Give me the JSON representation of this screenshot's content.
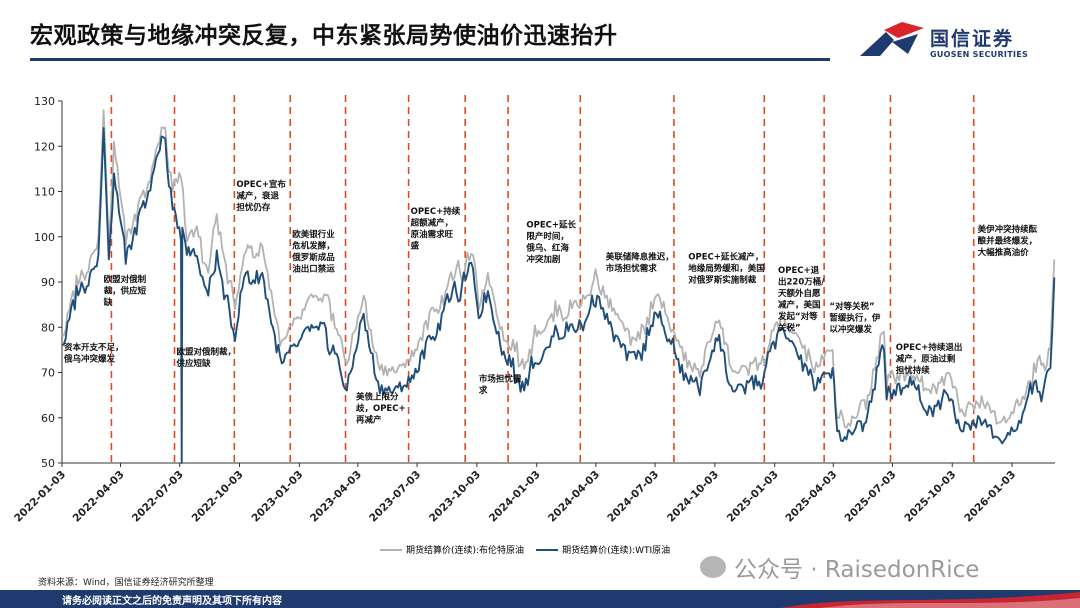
{
  "header": {
    "title": "宏观政策与地缘冲突反复，中东紧张局势使油价迅速抬升",
    "logo_cn": "国信证券",
    "logo_en": "GUOSEN SECURITIES",
    "brand_color": "#1f3a6e",
    "accent_color": "#d9252a"
  },
  "chart_data": {
    "type": "line",
    "title": "",
    "xlabel": "",
    "ylabel": "",
    "ylim": [
      50,
      130
    ],
    "yticks": [
      50,
      60,
      70,
      80,
      90,
      100,
      110,
      120,
      130
    ],
    "xlim": [
      "2022-01-03",
      "2026-03-10"
    ],
    "xticks": [
      "2022-01-03",
      "2022-04-03",
      "2022-07-03",
      "2022-10-03",
      "2023-01-03",
      "2023-04-03",
      "2023-07-03",
      "2023-10-03",
      "2024-01-03",
      "2024-04-03",
      "2024-07-03",
      "2024-10-03",
      "2025-01-03",
      "2025-04-03",
      "2025-07-03",
      "2025-10-03",
      "2026-01-03"
    ],
    "grid": false,
    "legend_position": "bottom",
    "series": [
      {
        "name": "期货结算价(连续):布伦特原油",
        "color": "#b3b3b3",
        "points": [
          [
            "2022-01-03",
            78
          ],
          [
            "2022-01-20",
            88
          ],
          [
            "2022-02-10",
            92
          ],
          [
            "2022-02-28",
            100
          ],
          [
            "2022-03-08",
            128
          ],
          [
            "2022-03-16",
            98
          ],
          [
            "2022-03-24",
            121
          ],
          [
            "2022-04-11",
            98
          ],
          [
            "2022-04-25",
            105
          ],
          [
            "2022-05-16",
            112
          ],
          [
            "2022-06-08",
            124
          ],
          [
            "2022-06-22",
            110
          ],
          [
            "2022-07-05",
            113
          ],
          [
            "2022-07-14",
            99
          ],
          [
            "2022-08-01",
            100
          ],
          [
            "2022-08-16",
            92
          ],
          [
            "2022-08-29",
            105
          ],
          [
            "2022-09-26",
            84
          ],
          [
            "2022-10-10",
            96
          ],
          [
            "2022-11-07",
            98
          ],
          [
            "2022-12-07",
            77
          ],
          [
            "2023-01-03",
            82
          ],
          [
            "2023-01-27",
            87
          ],
          [
            "2023-02-24",
            83
          ],
          [
            "2023-03-17",
            72
          ],
          [
            "2023-04-12",
            87
          ],
          [
            "2023-05-04",
            72
          ],
          [
            "2023-06-12",
            72
          ],
          [
            "2023-07-03",
            75
          ],
          [
            "2023-08-10",
            87
          ],
          [
            "2023-09-27",
            96
          ],
          [
            "2023-10-06",
            84
          ],
          [
            "2023-10-20",
            92
          ],
          [
            "2023-11-16",
            77
          ],
          [
            "2023-12-12",
            73
          ],
          [
            "2024-01-03",
            78
          ],
          [
            "2024-01-26",
            83
          ],
          [
            "2024-02-15",
            82
          ],
          [
            "2024-03-20",
            87
          ],
          [
            "2024-04-05",
            91
          ],
          [
            "2024-04-20",
            87
          ],
          [
            "2024-05-06",
            83
          ],
          [
            "2024-06-04",
            77
          ],
          [
            "2024-07-05",
            87
          ],
          [
            "2024-08-05",
            77
          ],
          [
            "2024-09-10",
            69
          ],
          [
            "2024-10-07",
            81
          ],
          [
            "2024-10-28",
            71
          ],
          [
            "2024-12-10",
            72
          ],
          [
            "2025-01-15",
            82
          ],
          [
            "2025-02-18",
            76
          ],
          [
            "2025-03-05",
            70
          ],
          [
            "2025-04-02",
            75
          ],
          [
            "2025-04-09",
            60
          ],
          [
            "2025-05-05",
            60
          ],
          [
            "2025-05-26",
            65
          ],
          [
            "2025-06-20",
            79
          ],
          [
            "2025-06-24",
            67
          ],
          [
            "2025-07-30",
            71
          ],
          [
            "2025-08-20",
            66
          ],
          [
            "2025-09-26",
            70
          ],
          [
            "2025-10-20",
            61
          ],
          [
            "2025-11-20",
            63
          ],
          [
            "2025-12-16",
            59
          ],
          [
            "2026-01-05",
            61
          ],
          [
            "2026-01-28",
            68
          ],
          [
            "2026-02-20",
            72
          ],
          [
            "2026-03-03",
            75
          ],
          [
            "2026-03-06",
            86
          ],
          [
            "2026-03-09",
            95
          ]
        ]
      },
      {
        "name": "期货结算价(连续):WTI原油",
        "color": "#1f4e79",
        "points": [
          [
            "2022-01-03",
            76
          ],
          [
            "2022-01-20",
            86
          ],
          [
            "2022-02-10",
            89
          ],
          [
            "2022-02-28",
            96
          ],
          [
            "2022-03-08",
            124
          ],
          [
            "2022-03-16",
            95
          ],
          [
            "2022-03-24",
            114
          ],
          [
            "2022-04-11",
            94
          ],
          [
            "2022-04-25",
            102
          ],
          [
            "2022-05-16",
            110
          ],
          [
            "2022-06-08",
            122
          ],
          [
            "2022-06-22",
            106
          ],
          [
            "2022-07-05",
            99
          ],
          [
            "2022-07-06",
            50
          ],
          [
            "2022-07-07",
            102
          ],
          [
            "2022-07-14",
            96
          ],
          [
            "2022-08-01",
            94
          ],
          [
            "2022-08-16",
            87
          ],
          [
            "2022-08-29",
            97
          ],
          [
            "2022-09-26",
            77
          ],
          [
            "2022-10-10",
            91
          ],
          [
            "2022-11-07",
            92
          ],
          [
            "2022-12-07",
            72
          ],
          [
            "2023-01-03",
            77
          ],
          [
            "2023-01-27",
            80
          ],
          [
            "2023-02-24",
            76
          ],
          [
            "2023-03-17",
            66
          ],
          [
            "2023-04-12",
            83
          ],
          [
            "2023-05-04",
            68
          ],
          [
            "2023-06-12",
            67
          ],
          [
            "2023-07-03",
            70
          ],
          [
            "2023-08-10",
            83
          ],
          [
            "2023-09-27",
            93
          ],
          [
            "2023-10-06",
            82
          ],
          [
            "2023-10-20",
            88
          ],
          [
            "2023-11-16",
            73
          ],
          [
            "2023-12-12",
            68
          ],
          [
            "2024-01-03",
            72
          ],
          [
            "2024-01-26",
            78
          ],
          [
            "2024-02-15",
            78
          ],
          [
            "2024-03-20",
            82
          ],
          [
            "2024-04-05",
            87
          ],
          [
            "2024-04-20",
            83
          ],
          [
            "2024-05-06",
            78
          ],
          [
            "2024-06-04",
            73
          ],
          [
            "2024-07-05",
            83
          ],
          [
            "2024-08-05",
            73
          ],
          [
            "2024-09-10",
            65
          ],
          [
            "2024-10-07",
            77
          ],
          [
            "2024-10-28",
            67
          ],
          [
            "2024-12-10",
            68
          ],
          [
            "2025-01-15",
            80
          ],
          [
            "2025-02-18",
            72
          ],
          [
            "2025-03-05",
            66
          ],
          [
            "2025-04-02",
            71
          ],
          [
            "2025-04-09",
            57
          ],
          [
            "2025-05-05",
            57
          ],
          [
            "2025-05-26",
            61
          ],
          [
            "2025-06-20",
            75
          ],
          [
            "2025-06-24",
            64
          ],
          [
            "2025-07-30",
            69
          ],
          [
            "2025-08-20",
            62
          ],
          [
            "2025-09-26",
            65
          ],
          [
            "2025-10-20",
            57
          ],
          [
            "2025-11-20",
            59
          ],
          [
            "2025-12-16",
            55
          ],
          [
            "2026-01-05",
            57
          ],
          [
            "2026-01-28",
            65
          ],
          [
            "2026-02-20",
            66
          ],
          [
            "2026-03-03",
            71
          ],
          [
            "2026-03-06",
            80
          ],
          [
            "2026-03-09",
            91
          ]
        ]
      }
    ],
    "event_lines": [
      "2022-03-20",
      "2022-06-25",
      "2022-09-25",
      "2022-12-20",
      "2023-03-15",
      "2023-06-20",
      "2023-09-15",
      "2023-11-20",
      "2024-03-10",
      "2024-08-01",
      "2024-12-18",
      "2025-03-20",
      "2025-06-30",
      "2025-11-05"
    ],
    "annotations": [
      {
        "date": "2022-01-03",
        "y": 75,
        "lines": [
          "资本开支不足，",
          "俄乌冲突爆发"
        ]
      },
      {
        "date": "2022-03-05",
        "y": 90,
        "lines": [
          "欧盟对俄制",
          "裁，供应短",
          "缺"
        ]
      },
      {
        "date": "2022-06-25",
        "y": 74,
        "lines": [
          "欧盟对俄制裁，",
          "供应短缺"
        ]
      },
      {
        "date": "2022-09-25",
        "y": 111,
        "lines": [
          "OPEC+宣布",
          "减产，衰退",
          "担忧仍存"
        ]
      },
      {
        "date": "2022-12-20",
        "y": 100,
        "lines": [
          "欧美银行业",
          "危机发酵，",
          "俄罗斯成品",
          "油出口禁运"
        ]
      },
      {
        "date": "2023-03-28",
        "y": 64,
        "lines": [
          "美债上限分",
          "歧，OPEC+",
          "再减产"
        ]
      },
      {
        "date": "2023-06-20",
        "y": 105,
        "lines": [
          "OPEC+持续",
          "超额减产，",
          "原油需求旺",
          "盛"
        ]
      },
      {
        "date": "2023-10-03",
        "y": 68,
        "lines": [
          "市场担忧需",
          "求"
        ]
      },
      {
        "date": "2023-12-15",
        "y": 102,
        "lines": [
          "OPEC+延长",
          "限产时间，",
          "俄乌、红海",
          "冲突加剧"
        ]
      },
      {
        "date": "2024-04-15",
        "y": 95,
        "lines": [
          "美联储降息推迟，",
          "市场担忧需求"
        ]
      },
      {
        "date": "2024-08-20",
        "y": 95,
        "lines": [
          "OPEC+延长减产，",
          "地缘局势缓和，美国",
          "对俄罗斯实施制裁"
        ]
      },
      {
        "date": "2025-01-05",
        "y": 92,
        "lines": [
          "OPEC+退",
          "出220万桶/",
          "天额外自愿",
          "减产，美国",
          "发起“对等",
          "关税”"
        ]
      },
      {
        "date": "2025-03-25",
        "y": 84,
        "lines": [
          "“对等关税”",
          "暂缓执行，伊",
          "以冲突爆发"
        ]
      },
      {
        "date": "2025-07-05",
        "y": 75,
        "lines": [
          "OPEC+持续退出",
          "减产，原油过剩",
          "担忧持续"
        ]
      },
      {
        "date": "2025-11-08",
        "y": 101,
        "lines": [
          "美伊冲突持续酝",
          "酿并最终爆发，",
          "大幅推高油价"
        ]
      }
    ]
  },
  "legend": {
    "brent_label": "期货结算价(连续):布伦特原油",
    "wti_label": "期货结算价(连续):WTI原油"
  },
  "source": "资料来源：Wind，国信证券经济研究所整理",
  "watermark": "公众号 · RaisedonRice",
  "footer": {
    "disclaimer": "请务必阅读正文之后的免责声明及其项下所有内容"
  }
}
